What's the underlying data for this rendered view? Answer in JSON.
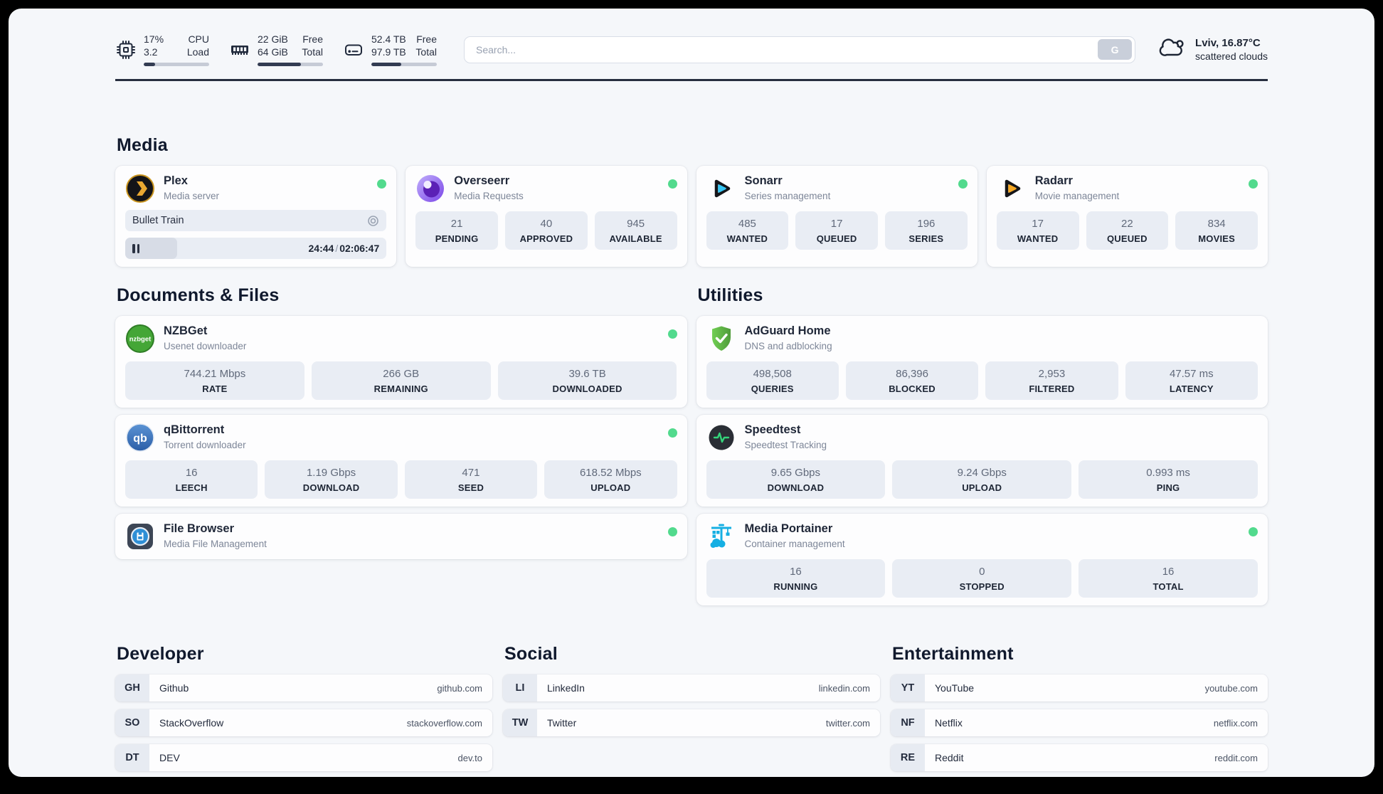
{
  "header": {
    "metrics": [
      {
        "id": "cpu",
        "line1": "17%",
        "line2": "3.2",
        "label1": "CPU",
        "label2": "Load",
        "progress_pct": 17
      },
      {
        "id": "memory",
        "line1": "22 GiB",
        "line2": "64 GiB",
        "label1": "Free",
        "label2": "Total",
        "progress_pct": 66
      },
      {
        "id": "disk",
        "line1": "52.4 TB",
        "line2": "97.9 TB",
        "label1": "Free",
        "label2": "Total",
        "progress_pct": 46
      }
    ],
    "search": {
      "placeholder": "Search...",
      "button_label": "G"
    },
    "weather": {
      "location_temp": "Lviv, 16.87°C",
      "condition": "scattered clouds"
    }
  },
  "sections": {
    "media": "Media",
    "documents": "Documents & Files",
    "utilities": "Utilities"
  },
  "apps": {
    "plex": {
      "name": "Plex",
      "subtitle": "Media server",
      "online": true,
      "now_playing": {
        "title": "Bullet Train",
        "elapsed": "24:44",
        "separator": "/",
        "duration": "02:06:47",
        "progress_pct": 20
      }
    },
    "overseerr": {
      "name": "Overseerr",
      "subtitle": "Media Requests",
      "online": true,
      "stats": [
        {
          "value": "21",
          "label": "PENDING"
        },
        {
          "value": "40",
          "label": "APPROVED"
        },
        {
          "value": "945",
          "label": "AVAILABLE"
        }
      ]
    },
    "sonarr": {
      "name": "Sonarr",
      "subtitle": "Series management",
      "online": true,
      "stats": [
        {
          "value": "485",
          "label": "WANTED"
        },
        {
          "value": "17",
          "label": "QUEUED"
        },
        {
          "value": "196",
          "label": "SERIES"
        }
      ]
    },
    "radarr": {
      "name": "Radarr",
      "subtitle": "Movie management",
      "online": true,
      "stats": [
        {
          "value": "17",
          "label": "WANTED"
        },
        {
          "value": "22",
          "label": "QUEUED"
        },
        {
          "value": "834",
          "label": "MOVIES"
        }
      ]
    },
    "nzbget": {
      "name": "NZBGet",
      "subtitle": "Usenet downloader",
      "online": true,
      "stats": [
        {
          "value": "744.21 Mbps",
          "label": "RATE"
        },
        {
          "value": "266 GB",
          "label": "REMAINING"
        },
        {
          "value": "39.6 TB",
          "label": "DOWNLOADED"
        }
      ]
    },
    "qbittorrent": {
      "name": "qBittorrent",
      "subtitle": "Torrent downloader",
      "online": true,
      "stats": [
        {
          "value": "16",
          "label": "LEECH"
        },
        {
          "value": "1.19 Gbps",
          "label": "DOWNLOAD"
        },
        {
          "value": "471",
          "label": "SEED"
        },
        {
          "value": "618.52 Mbps",
          "label": "UPLOAD"
        }
      ]
    },
    "filebrowser": {
      "name": "File Browser",
      "subtitle": "Media File Management",
      "online": true
    },
    "adguard": {
      "name": "AdGuard Home",
      "subtitle": "DNS and adblocking",
      "online": false,
      "stats": [
        {
          "value": "498,508",
          "label": "QUERIES"
        },
        {
          "value": "86,396",
          "label": "BLOCKED"
        },
        {
          "value": "2,953",
          "label": "FILTERED"
        },
        {
          "value": "47.57 ms",
          "label": "LATENCY"
        }
      ]
    },
    "speedtest": {
      "name": "Speedtest",
      "subtitle": "Speedtest Tracking",
      "online": false,
      "stats": [
        {
          "value": "9.65 Gbps",
          "label": "DOWNLOAD"
        },
        {
          "value": "9.24 Gbps",
          "label": "UPLOAD"
        },
        {
          "value": "0.993 ms",
          "label": "PING"
        }
      ]
    },
    "portainer": {
      "name": "Media Portainer",
      "subtitle": "Container management",
      "online": true,
      "stats": [
        {
          "value": "16",
          "label": "RUNNING"
        },
        {
          "value": "0",
          "label": "STOPPED"
        },
        {
          "value": "16",
          "label": "TOTAL"
        }
      ]
    }
  },
  "bookmarks": {
    "developer": {
      "title": "Developer",
      "items": [
        {
          "abbr": "GH",
          "name": "Github",
          "url": "github.com"
        },
        {
          "abbr": "SO",
          "name": "StackOverflow",
          "url": "stackoverflow.com"
        },
        {
          "abbr": "DT",
          "name": "DEV",
          "url": "dev.to"
        }
      ]
    },
    "social": {
      "title": "Social",
      "items": [
        {
          "abbr": "LI",
          "name": "LinkedIn",
          "url": "linkedin.com"
        },
        {
          "abbr": "TW",
          "name": "Twitter",
          "url": "twitter.com"
        }
      ]
    },
    "entertainment": {
      "title": "Entertainment",
      "items": [
        {
          "abbr": "YT",
          "name": "YouTube",
          "url": "youtube.com"
        },
        {
          "abbr": "NF",
          "name": "Netflix",
          "url": "netflix.com"
        },
        {
          "abbr": "RE",
          "name": "Reddit",
          "url": "reddit.com"
        }
      ]
    }
  },
  "colors": {
    "status_online": "#52da8d",
    "page_bg": "#f5f7fa",
    "tile_bg": "#e9edf4",
    "text_dark": "#1d2534",
    "progress_fill": "#333c52"
  }
}
